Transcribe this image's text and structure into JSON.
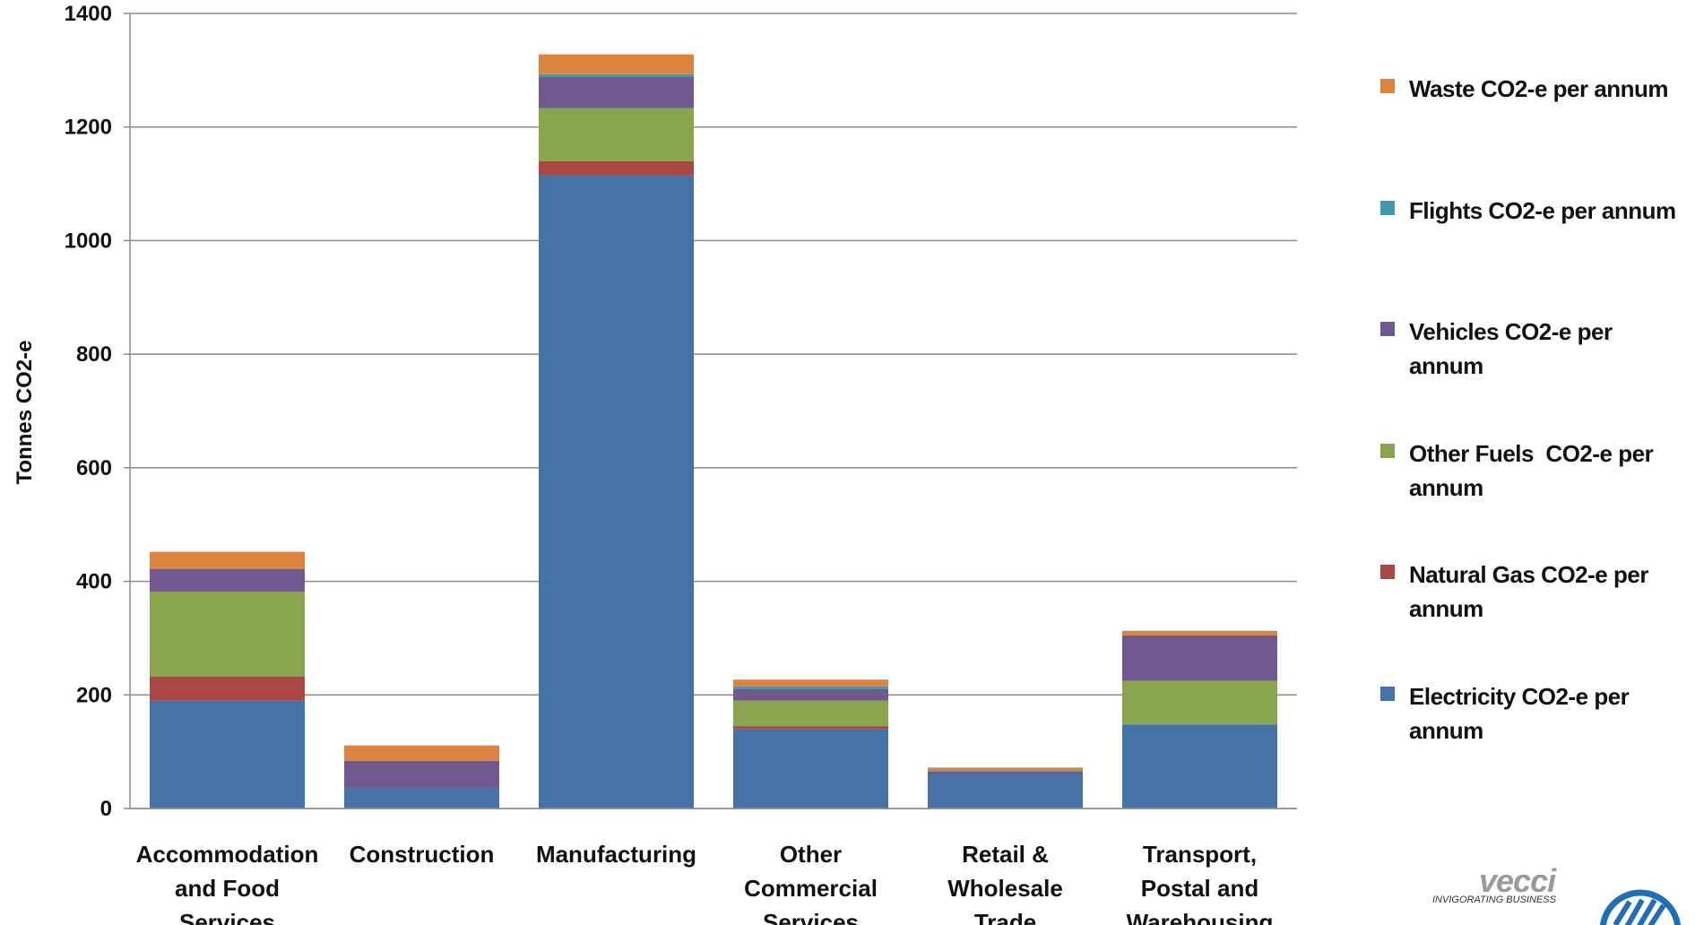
{
  "chart_data": {
    "type": "bar",
    "stacked": true,
    "categories": [
      [
        "Accommodation",
        "and Food",
        "Services"
      ],
      [
        "Construction"
      ],
      [
        "Manufacturing"
      ],
      [
        "Other",
        "Commercial",
        "Services"
      ],
      [
        "Retail &",
        "Wholesale",
        "Trade"
      ],
      [
        "Transport,",
        "Postal and",
        "Warehousing"
      ]
    ],
    "series": [
      {
        "name": "Electricity CO2-e per annum",
        "color": "#4572A7",
        "values": [
          190,
          37,
          1115,
          140,
          60,
          148
        ]
      },
      {
        "name": "Natural Gas CO2-e per annum",
        "color": "#AA4643",
        "values": [
          42,
          0,
          25,
          5,
          0,
          0
        ]
      },
      {
        "name": "Other Fuels  CO2-e per annum",
        "color": "#89A54E",
        "values": [
          150,
          0,
          93,
          45,
          0,
          77
        ]
      },
      {
        "name": "Vehicles CO2-e per annum",
        "color": "#71588F",
        "values": [
          40,
          47,
          55,
          20,
          5,
          80
        ]
      },
      {
        "name": "Flights CO2-e per annum",
        "color": "#4198AF",
        "values": [
          0,
          0,
          5,
          5,
          2,
          0
        ]
      },
      {
        "name": "Waste CO2-e per annum",
        "color": "#DB843D",
        "values": [
          30,
          27,
          35,
          12,
          5,
          8
        ]
      }
    ],
    "ylabel": "Tonnes CO2-e",
    "ylim": [
      0,
      1400
    ],
    "yticks": [
      0,
      200,
      400,
      600,
      800,
      1000,
      1200,
      1400
    ],
    "grid": true,
    "legend_position": "right"
  },
  "legend": [
    {
      "lines": [
        "Waste CO2-e per annum"
      ],
      "color": "#DB843D"
    },
    {
      "lines": [
        "Flights CO2-e per annum"
      ],
      "color": "#4198AF"
    },
    {
      "lines": [
        "Vehicles CO2-e per",
        "annum"
      ],
      "color": "#71588F"
    },
    {
      "lines": [
        "Other Fuels  CO2-e per",
        "annum"
      ],
      "color": "#89A54E"
    },
    {
      "lines": [
        "Natural Gas CO2-e per",
        "annum"
      ],
      "color": "#AA4643"
    },
    {
      "lines": [
        "Electricity CO2-e per",
        "annum"
      ],
      "color": "#4572A7"
    }
  ],
  "logo": {
    "word": "vecci",
    "tagline": "INVIGORATING BUSINESS"
  }
}
